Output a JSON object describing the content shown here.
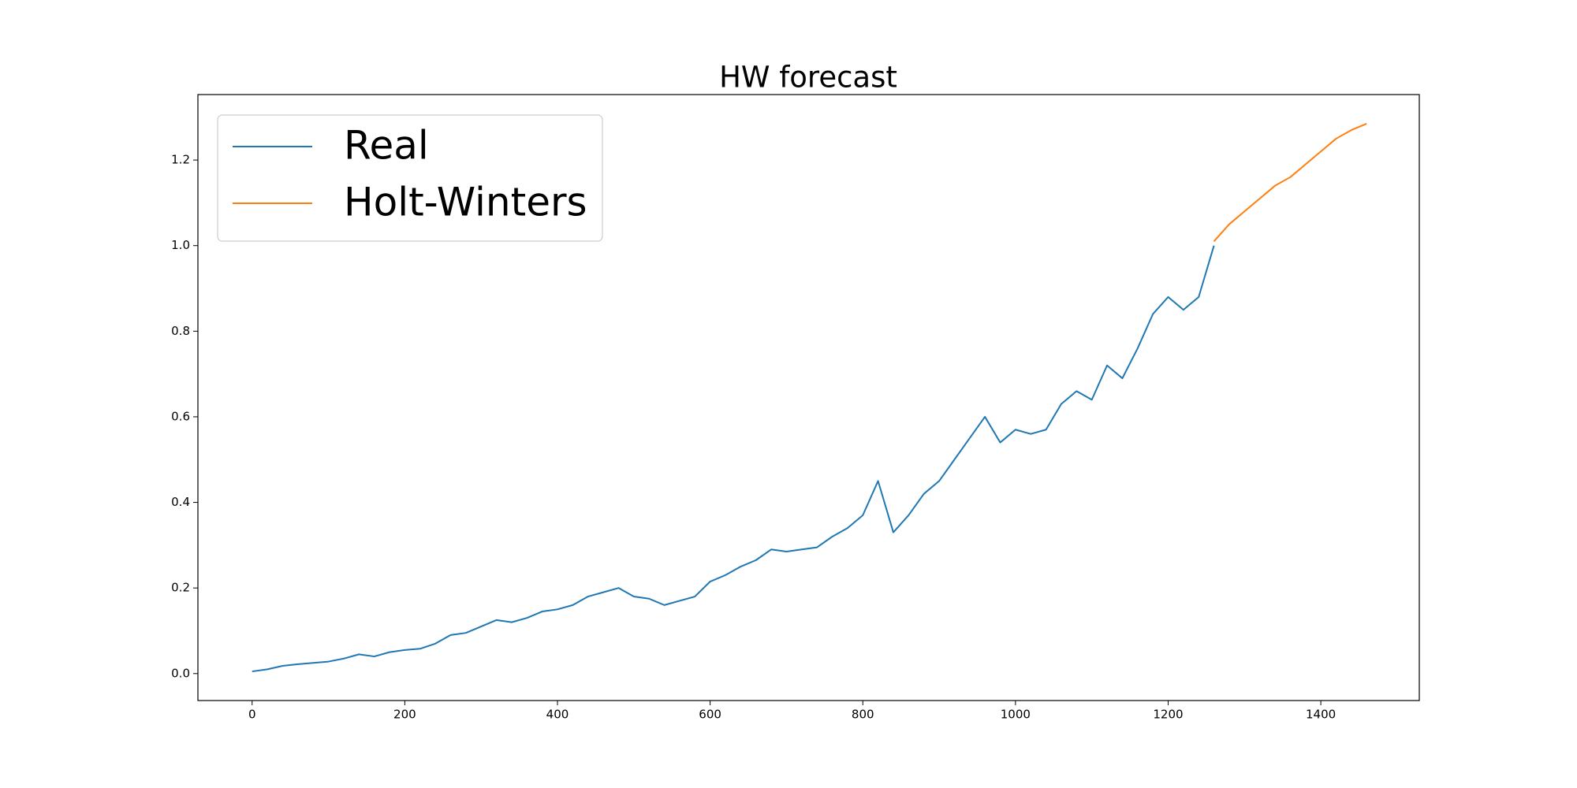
{
  "chart_data": {
    "type": "line",
    "title": "HW forecast",
    "x": [
      0,
      20,
      40,
      60,
      80,
      100,
      120,
      140,
      160,
      180,
      200,
      220,
      240,
      260,
      280,
      300,
      320,
      340,
      360,
      380,
      400,
      420,
      440,
      460,
      480,
      500,
      520,
      540,
      560,
      580,
      600,
      620,
      640,
      660,
      680,
      700,
      720,
      740,
      760,
      780,
      800,
      820,
      840,
      860,
      880,
      900,
      920,
      940,
      960,
      980,
      1000,
      1020,
      1040,
      1060,
      1080,
      1100,
      1120,
      1140,
      1160,
      1180,
      1200,
      1220,
      1240,
      1260,
      1280,
      1300,
      1320,
      1340,
      1360,
      1380,
      1400,
      1420,
      1440,
      1460
    ],
    "series": [
      {
        "name": "Real",
        "color": "#1f77b4",
        "values": [
          0.005,
          0.01,
          0.018,
          0.022,
          0.025,
          0.028,
          0.035,
          0.045,
          0.04,
          0.05,
          0.055,
          0.058,
          0.07,
          0.09,
          0.095,
          0.11,
          0.125,
          0.12,
          0.13,
          0.145,
          0.15,
          0.16,
          0.18,
          0.19,
          0.2,
          0.18,
          0.175,
          0.16,
          0.17,
          0.18,
          0.215,
          0.23,
          0.25,
          0.265,
          0.29,
          0.285,
          0.29,
          0.295,
          0.32,
          0.34,
          0.37,
          0.45,
          0.33,
          0.37,
          0.42,
          0.45,
          0.5,
          0.55,
          0.6,
          0.54,
          0.57,
          0.56,
          0.57,
          0.63,
          0.66,
          0.64,
          0.72,
          0.69,
          0.76,
          0.84,
          0.88,
          0.85,
          0.88,
          1.0,
          null,
          null,
          null,
          null,
          null,
          null,
          null,
          null,
          null,
          null
        ]
      },
      {
        "name": "Holt-Winters",
        "color": "#ff7f0e",
        "values": [
          null,
          null,
          null,
          null,
          null,
          null,
          null,
          null,
          null,
          null,
          null,
          null,
          null,
          null,
          null,
          null,
          null,
          null,
          null,
          null,
          null,
          null,
          null,
          null,
          null,
          null,
          null,
          null,
          null,
          null,
          null,
          null,
          null,
          null,
          null,
          null,
          null,
          null,
          null,
          null,
          null,
          null,
          null,
          null,
          null,
          null,
          null,
          null,
          null,
          null,
          null,
          null,
          null,
          null,
          null,
          null,
          null,
          null,
          null,
          null,
          null,
          null,
          null,
          1.01,
          1.05,
          1.08,
          1.11,
          1.14,
          1.16,
          1.19,
          1.22,
          1.25,
          1.27,
          1.285
        ]
      }
    ],
    "xlim": [
      -71,
      1529
    ],
    "ylim": [
      -0.063,
      1.353
    ],
    "xticks": [
      0,
      200,
      400,
      600,
      800,
      1000,
      1200,
      1400
    ],
    "yticks": [
      {
        "value": 0,
        "label": "0.0"
      },
      0.2,
      0.4,
      0.6,
      0.8,
      {
        "value": 1,
        "label": "1.0"
      },
      1.2
    ],
    "legend": "upper left",
    "grid": false
  }
}
